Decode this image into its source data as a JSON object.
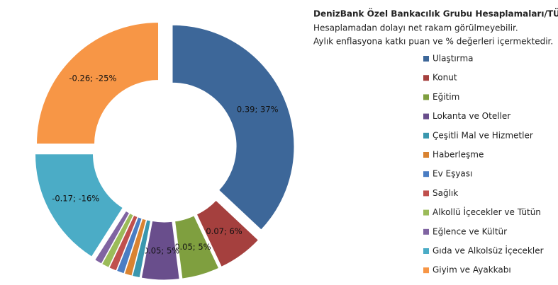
{
  "chart_data": {
    "type": "donut",
    "title": "DenizBank Özel Bankacılık Grubu Hesaplamaları/TÜİK",
    "subtitle": [
      "Hesaplamadan dolayı net rakam görülmeyebilir.",
      "Aylık enflasyona katkı puan ve % değerleri içermektedir."
    ],
    "categories": [
      "Ulaştırma",
      "Konut",
      "Eğitim",
      "Lokanta ve Oteller",
      "Çeşitli Mal ve Hizmetler",
      "Haberleşme",
      "Ev Eşyası",
      "Sağlık",
      "Alkollü İçecekler ve Tütün",
      "Eğlence ve Kültür",
      "Gıda ve Alkolsüz İçecekler",
      "Giyim ve Ayakkabı"
    ],
    "values": [
      37,
      6,
      5,
      5,
      1,
      1,
      1,
      1,
      1,
      1,
      -16,
      -25
    ],
    "value_labels": [
      "0.39; 37%",
      "0.07; 6%",
      "0.05; 5%",
      "0.05; 5%",
      null,
      null,
      null,
      null,
      null,
      null,
      "-0.17; -16%",
      "-0.26; -25%"
    ],
    "colors": [
      "#3d6799",
      "#a5403e",
      "#7f9f3f",
      "#694e8c",
      "#3a97ae",
      "#d98331",
      "#4a7dc3",
      "#c0504d",
      "#9bbb59",
      "#8064a2",
      "#4bacc6",
      "#f79646"
    ],
    "legend": "right"
  }
}
